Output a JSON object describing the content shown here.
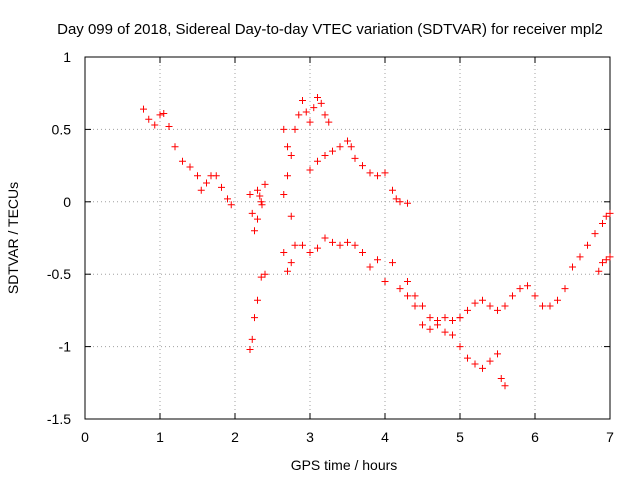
{
  "chart_data": {
    "type": "scatter",
    "title": "Day 099 of 2018, Sidereal Day-to-day VTEC variation (SDTVAR) for receiver mpl2",
    "xlabel": "GPS time / hours",
    "ylabel": "SDTVAR / TECUs",
    "xlim": [
      0,
      7
    ],
    "ylim": [
      -1.5,
      1
    ],
    "grid": true,
    "marker": "+",
    "x_ticks": [
      {
        "value": 0,
        "label": "0"
      },
      {
        "value": 1,
        "label": "1"
      },
      {
        "value": 2,
        "label": "2"
      },
      {
        "value": 3,
        "label": "3"
      },
      {
        "value": 4,
        "label": "4"
      },
      {
        "value": 5,
        "label": "5"
      },
      {
        "value": 6,
        "label": "6"
      },
      {
        "value": 7,
        "label": "7"
      }
    ],
    "y_ticks": [
      {
        "value": 1,
        "label": "1"
      },
      {
        "value": 0.5,
        "label": "0.5"
      },
      {
        "value": 0,
        "label": "0"
      },
      {
        "value": -0.5,
        "label": "-0.5"
      },
      {
        "value": -1,
        "label": "-1"
      },
      {
        "value": -1.5,
        "label": "-1.5"
      }
    ],
    "series": [
      {
        "name": "SDTVAR",
        "color": "#ff0000",
        "segments": [
          {
            "x": [
              0.78,
              0.85,
              0.93,
              1.0,
              1.05,
              1.12,
              1.2,
              1.3,
              1.4,
              1.5,
              1.55,
              1.62,
              1.68,
              1.75,
              1.82,
              1.9,
              1.95
            ],
            "y": [
              0.64,
              0.57,
              0.53,
              0.6,
              0.61,
              0.52,
              0.38,
              0.28,
              0.24,
              0.18,
              0.08,
              0.13,
              0.18,
              0.18,
              0.1,
              0.02,
              -0.02
            ]
          },
          {
            "x": [
              2.2,
              2.23,
              2.26,
              2.3,
              2.35
            ],
            "y": [
              0.05,
              -0.08,
              -0.2,
              -0.12,
              0.0
            ]
          },
          {
            "x": [
              2.2,
              2.23,
              2.26,
              2.3,
              2.35,
              2.4
            ],
            "y": [
              -1.02,
              -0.95,
              -0.8,
              -0.68,
              -0.52,
              -0.5
            ]
          },
          {
            "x": [
              2.3,
              2.33,
              2.36,
              2.4
            ],
            "y": [
              0.08,
              0.04,
              -0.02,
              0.12
            ]
          },
          {
            "x": [
              2.65,
              2.7,
              2.75,
              2.8,
              2.85,
              2.9,
              2.95,
              3.0,
              3.05,
              3.1,
              3.15,
              3.2,
              3.25
            ],
            "y": [
              0.5,
              0.38,
              0.32,
              0.5,
              0.6,
              0.7,
              0.62,
              0.55,
              0.65,
              0.72,
              0.68,
              0.6,
              0.55
            ]
          },
          {
            "x": [
              2.65,
              2.7,
              2.75,
              2.8
            ],
            "y": [
              -0.35,
              -0.48,
              -0.42,
              -0.3
            ]
          },
          {
            "x": [
              2.65,
              2.7,
              2.75
            ],
            "y": [
              0.05,
              0.18,
              -0.1
            ]
          },
          {
            "x": [
              3.0,
              3.1,
              3.2,
              3.3,
              3.4,
              3.5,
              3.55,
              3.6,
              3.7,
              3.8,
              3.9,
              4.0,
              4.1,
              4.15,
              4.2,
              4.3
            ],
            "y": [
              0.22,
              0.28,
              0.32,
              0.35,
              0.38,
              0.42,
              0.38,
              0.3,
              0.25,
              0.2,
              0.18,
              0.2,
              0.08,
              0.02,
              0.0,
              -0.01
            ]
          },
          {
            "x": [
              2.9,
              3.0,
              3.1,
              3.2,
              3.3,
              3.4,
              3.5,
              3.6,
              3.7,
              3.8,
              3.9,
              4.0,
              4.1,
              4.2,
              4.3,
              4.4,
              4.5,
              4.6,
              4.7,
              4.8,
              4.9,
              5.0
            ],
            "y": [
              -0.3,
              -0.35,
              -0.32,
              -0.25,
              -0.28,
              -0.3,
              -0.28,
              -0.3,
              -0.35,
              -0.45,
              -0.4,
              -0.55,
              -0.42,
              -0.6,
              -0.65,
              -0.72,
              -0.85,
              -0.88,
              -0.82,
              -0.8,
              -0.82,
              -0.8
            ]
          },
          {
            "x": [
              4.3,
              4.4,
              4.5,
              4.6,
              4.7,
              4.8,
              4.9,
              5.0,
              5.1,
              5.2,
              5.3,
              5.4,
              5.5,
              5.55,
              5.6
            ],
            "y": [
              -0.55,
              -0.65,
              -0.72,
              -0.8,
              -0.85,
              -0.9,
              -0.92,
              -1.0,
              -1.08,
              -1.12,
              -1.15,
              -1.1,
              -1.05,
              -1.22,
              -1.27
            ]
          },
          {
            "x": [
              4.9,
              5.0,
              5.1,
              5.2,
              5.3,
              5.4,
              5.5,
              5.6,
              5.7,
              5.8,
              5.9,
              6.0,
              6.1,
              6.2,
              6.3,
              6.4,
              6.5,
              6.6,
              6.7,
              6.8,
              6.9,
              6.95,
              7.0
            ],
            "y": [
              -0.82,
              -0.8,
              -0.75,
              -0.7,
              -0.68,
              -0.72,
              -0.75,
              -0.72,
              -0.65,
              -0.6,
              -0.58,
              -0.65,
              -0.72,
              -0.72,
              -0.68,
              -0.6,
              -0.45,
              -0.38,
              -0.3,
              -0.22,
              -0.15,
              -0.1,
              -0.08
            ]
          },
          {
            "x": [
              6.85,
              6.9,
              6.95,
              7.0
            ],
            "y": [
              -0.48,
              -0.42,
              -0.4,
              -0.38
            ]
          }
        ]
      }
    ]
  }
}
